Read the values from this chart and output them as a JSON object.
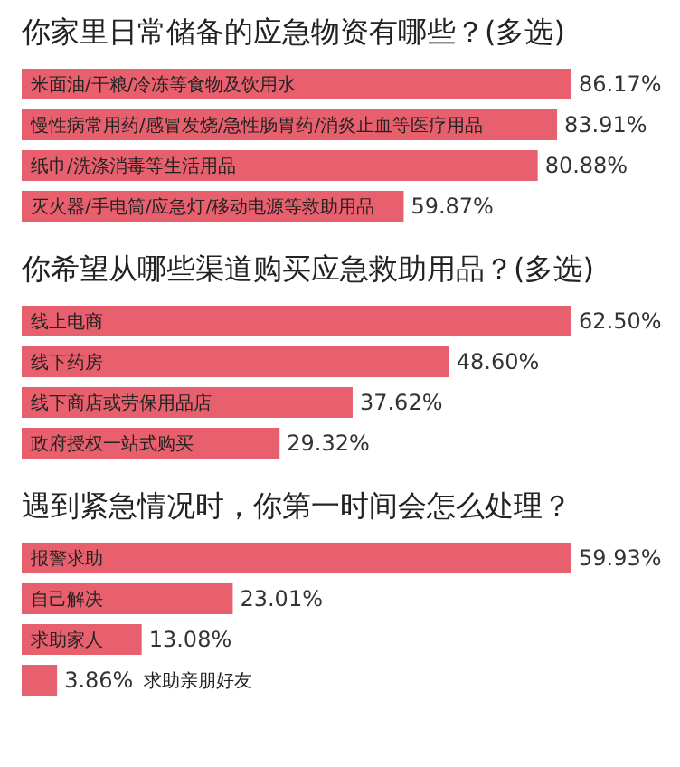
{
  "chart_data": [
    {
      "type": "bar",
      "orientation": "horizontal",
      "title": "你家里日常储备的应急物资有哪些？(多选)",
      "categories": [
        "米面油/干粮/冷冻等食物及饮用水",
        "慢性病常用药/感冒发烧/急性肠胃药/消炎止血等医疗用品",
        "纸巾/洗涤消毒等生活用品",
        "灭火器/手电筒/应急灯/移动电源等救助用品"
      ],
      "values": [
        86.17,
        83.91,
        80.88,
        59.87
      ],
      "value_labels": [
        "86.17%",
        "83.91%",
        "80.88%",
        "59.87%"
      ],
      "color": "#e8606e"
    },
    {
      "type": "bar",
      "orientation": "horizontal",
      "title": "你希望从哪些渠道购买应急救助用品？(多选)",
      "categories": [
        "线上电商",
        "线下药房",
        "线下商店或劳保用品店",
        "政府授权一站式购买"
      ],
      "values": [
        62.5,
        48.6,
        37.62,
        29.32
      ],
      "value_labels": [
        "62.50%",
        "48.60%",
        "37.62%",
        "29.32%"
      ],
      "color": "#e8606e"
    },
    {
      "type": "bar",
      "orientation": "horizontal",
      "title": "遇到紧急情况时，你第一时间会怎么处理？",
      "categories": [
        "报警求助",
        "自己解决",
        "求助家人",
        "求助亲朋好友"
      ],
      "values": [
        59.93,
        23.01,
        13.08,
        3.86
      ],
      "value_labels": [
        "59.93%",
        "23.01%",
        "13.08%",
        "3.86%"
      ],
      "color": "#e8606e"
    }
  ]
}
